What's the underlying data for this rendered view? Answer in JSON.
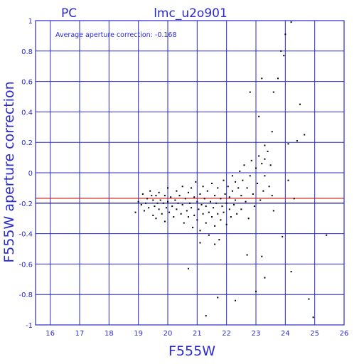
{
  "chart_data": {
    "type": "scatter",
    "title": "lmc_u2o901",
    "detector": "PC",
    "xlabel": "F555W",
    "ylabel": "F555W aperture correction",
    "annotation": "Average aperture correction: -0.168",
    "xlim": [
      15.5,
      26
    ],
    "ylim": [
      -1,
      1
    ],
    "x_ticks": [
      "16",
      "17",
      "18",
      "19",
      "20",
      "21",
      "22",
      "23",
      "24",
      "25",
      "26"
    ],
    "y_ticks": [
      "-1",
      "-0.8",
      "-0.6",
      "-0.4",
      "-0.2",
      "0",
      "0.2",
      "0.4",
      "0.6",
      "0.8",
      "1"
    ],
    "grid": true,
    "reference_lines": [
      {
        "y": -0.168,
        "color": "#d01010",
        "meaning": "average"
      },
      {
        "y": -0.2,
        "color": "#1a1a8a",
        "meaning": "reference"
      }
    ],
    "colors": {
      "frame": "#2a2acf",
      "text": "#2a2acf",
      "points": "#000000",
      "average_line": "#d01010",
      "reference_line": "#1a1a8a"
    },
    "points": [
      [
        18.9,
        -0.26
      ],
      [
        19.0,
        -0.19
      ],
      [
        19.1,
        -0.21
      ],
      [
        19.15,
        -0.14
      ],
      [
        19.2,
        -0.25
      ],
      [
        19.25,
        -0.2
      ],
      [
        19.3,
        -0.17
      ],
      [
        19.35,
        -0.23
      ],
      [
        19.4,
        -0.12
      ],
      [
        19.45,
        -0.15
      ],
      [
        19.5,
        -0.18
      ],
      [
        19.5,
        -0.28
      ],
      [
        19.55,
        -0.22
      ],
      [
        19.6,
        -0.15
      ],
      [
        19.6,
        -0.3
      ],
      [
        19.65,
        -0.2
      ],
      [
        19.7,
        -0.13
      ],
      [
        19.7,
        -0.24
      ],
      [
        19.75,
        -0.18
      ],
      [
        19.8,
        -0.27
      ],
      [
        19.85,
        -0.2
      ],
      [
        19.9,
        -0.15
      ],
      [
        19.9,
        -0.32
      ],
      [
        19.95,
        -0.23
      ],
      [
        20.0,
        -0.1
      ],
      [
        20.0,
        -0.19
      ],
      [
        20.05,
        -0.26
      ],
      [
        20.1,
        -0.16
      ],
      [
        20.15,
        -0.22
      ],
      [
        20.2,
        -0.29
      ],
      [
        20.25,
        -0.18
      ],
      [
        20.3,
        -0.12
      ],
      [
        20.3,
        -0.24
      ],
      [
        20.35,
        -0.2
      ],
      [
        20.4,
        -0.15
      ],
      [
        20.45,
        -0.27
      ],
      [
        20.5,
        -0.09
      ],
      [
        20.5,
        -0.21
      ],
      [
        20.55,
        -0.33
      ],
      [
        20.6,
        -0.17
      ],
      [
        20.65,
        -0.25
      ],
      [
        20.7,
        -0.13
      ],
      [
        20.7,
        -0.29
      ],
      [
        20.75,
        -0.2
      ],
      [
        20.8,
        -0.1
      ],
      [
        20.8,
        -0.23
      ],
      [
        20.85,
        -0.36
      ],
      [
        20.9,
        -0.16
      ],
      [
        20.9,
        -0.28
      ],
      [
        20.95,
        -0.06
      ],
      [
        21.0,
        -0.19
      ],
      [
        21.0,
        -0.31
      ],
      [
        21.05,
        -0.24
      ],
      [
        21.1,
        -0.14
      ],
      [
        21.1,
        -0.38
      ],
      [
        21.15,
        -0.21
      ],
      [
        21.2,
        -0.09
      ],
      [
        21.2,
        -0.27
      ],
      [
        21.25,
        -0.17
      ],
      [
        21.3,
        -0.33
      ],
      [
        21.3,
        -0.22
      ],
      [
        21.35,
        -0.12
      ],
      [
        21.4,
        -0.26
      ],
      [
        21.4,
        -0.41
      ],
      [
        21.45,
        -0.19
      ],
      [
        21.5,
        -0.07
      ],
      [
        21.5,
        -0.29
      ],
      [
        21.55,
        -0.23
      ],
      [
        21.6,
        -0.15
      ],
      [
        21.6,
        -0.35
      ],
      [
        21.65,
        -0.2
      ],
      [
        21.7,
        -0.1
      ],
      [
        21.7,
        -0.27
      ],
      [
        21.75,
        -0.44
      ],
      [
        21.8,
        -0.17
      ],
      [
        21.8,
        -0.31
      ],
      [
        21.85,
        -0.22
      ],
      [
        21.9,
        -0.05
      ],
      [
        21.9,
        -0.26
      ],
      [
        21.95,
        -0.14
      ],
      [
        22.0,
        -0.2
      ],
      [
        22.0,
        -0.34
      ],
      [
        22.05,
        -0.09
      ],
      [
        22.1,
        -0.24
      ],
      [
        22.1,
        -0.16
      ],
      [
        22.15,
        -0.29
      ],
      [
        22.2,
        -0.02
      ],
      [
        22.2,
        -0.12
      ],
      [
        22.25,
        -0.21
      ],
      [
        22.3,
        -0.06
      ],
      [
        22.3,
        -0.18
      ],
      [
        22.35,
        -0.27
      ],
      [
        22.4,
        -0.1
      ],
      [
        22.45,
        0.01
      ],
      [
        22.5,
        -0.15
      ],
      [
        22.5,
        -0.24
      ],
      [
        22.55,
        -0.05
      ],
      [
        22.6,
        0.05
      ],
      [
        22.65,
        -0.19
      ],
      [
        22.7,
        -0.1
      ],
      [
        22.75,
        -0.3
      ],
      [
        22.8,
        -0.02
      ],
      [
        22.85,
        0.08
      ],
      [
        22.9,
        -0.14
      ],
      [
        22.95,
        -0.22
      ],
      [
        23.0,
        0.03
      ],
      [
        23.05,
        -0.07
      ],
      [
        23.1,
        0.11
      ],
      [
        23.15,
        -0.18
      ],
      [
        23.2,
        0.06
      ],
      [
        23.25,
        -0.12
      ],
      [
        23.3,
        0.09
      ],
      [
        23.3,
        -0.02
      ],
      [
        23.4,
        0.14
      ],
      [
        23.45,
        -0.09
      ],
      [
        23.5,
        0.05
      ],
      [
        23.55,
        -0.15
      ],
      [
        23.6,
        -0.25
      ],
      [
        20.7,
        -0.63
      ],
      [
        21.1,
        -0.46
      ],
      [
        21.6,
        -0.47
      ],
      [
        21.7,
        -0.82
      ],
      [
        21.3,
        -0.94
      ],
      [
        22.3,
        -0.84
      ],
      [
        22.7,
        -0.54
      ],
      [
        22.8,
        0.53
      ],
      [
        23.1,
        0.37
      ],
      [
        23.2,
        0.62
      ],
      [
        23.3,
        0.18
      ],
      [
        23.55,
        0.27
      ],
      [
        23.6,
        0.53
      ],
      [
        23.75,
        0.62
      ],
      [
        23.85,
        0.8
      ],
      [
        23.95,
        0.77
      ],
      [
        24.0,
        0.91
      ],
      [
        24.1,
        0.19
      ],
      [
        24.2,
        0.99
      ],
      [
        24.3,
        -0.17
      ],
      [
        24.4,
        0.21
      ],
      [
        24.5,
        0.45
      ],
      [
        24.65,
        0.25
      ],
      [
        24.1,
        -0.05
      ],
      [
        23.9,
        -0.42
      ],
      [
        23.2,
        -0.55
      ],
      [
        23.0,
        -0.78
      ],
      [
        23.3,
        -0.69
      ],
      [
        24.2,
        -0.65
      ],
      [
        24.8,
        -0.83
      ],
      [
        24.95,
        -0.95
      ],
      [
        25.4,
        -0.41
      ]
    ]
  }
}
